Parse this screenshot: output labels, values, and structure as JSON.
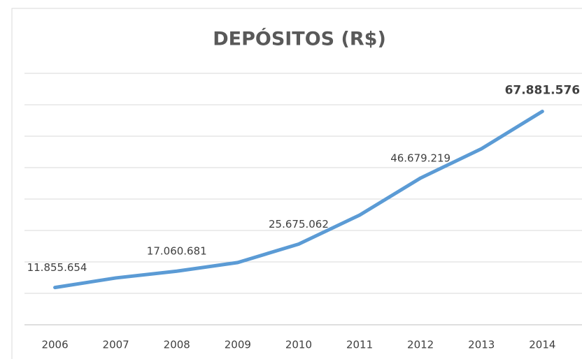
{
  "chart_data": {
    "type": "line",
    "title": "DEPÓSITOS (R$)",
    "categories": [
      "2006",
      "2007",
      "2008",
      "2009",
      "2010",
      "2011",
      "2012",
      "2013",
      "2014"
    ],
    "series": [
      {
        "name": "Depósitos",
        "color": "#5b9bd5",
        "values": [
          11855654,
          14900000,
          17060681,
          19800000,
          25675062,
          34900000,
          46679219,
          56000000,
          67881576
        ],
        "value_labels": [
          "11.855.654",
          null,
          "17.060.681",
          null,
          "25.675.062",
          null,
          "46.679.219",
          null,
          "67.881.576"
        ]
      }
    ],
    "ylim": [
      0,
      80000000
    ],
    "yticks": [
      0,
      10000000,
      20000000,
      30000000,
      40000000,
      50000000,
      60000000,
      70000000,
      80000000
    ],
    "grid": true
  }
}
